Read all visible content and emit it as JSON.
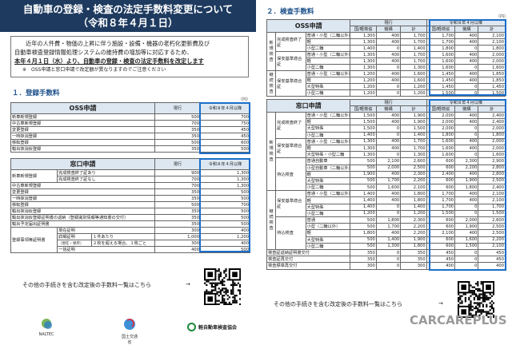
{
  "title": {
    "line1": "自動車の登録・検査の法定手数料変更について",
    "line2": "（令和８年４月１日）"
  },
  "intro": {
    "line1": "近年の人件費・物価の上昇に伴う施設・設備・機器の老朽化更新費及び",
    "line2": "自動車検査登録情報処理システムの維持費の増加等に対応するため、",
    "line3": "本年４月１日（水）より、自動車の登録・検査の法定手数料を改定します",
    "note": "※　OSS申請と窓口申請で改定額が異なりますのでご注意ください"
  },
  "registration": {
    "heading": "１．登録手数料",
    "unit": "（円）",
    "oss": {
      "header": "OSS申請",
      "col_current": "現行",
      "col_new": "令和８年４月以降",
      "rows": [
        [
          "新車新規登録",
          "500",
          "700"
        ],
        [
          "中古車新規登録",
          "700",
          "750"
        ],
        [
          "変更登録",
          "350",
          "450"
        ],
        [
          "一時抹消登録",
          "350",
          "450"
        ],
        [
          "移転登録",
          "500",
          "600"
        ],
        [
          "輸出抹消仮登録",
          "350",
          "500"
        ]
      ]
    },
    "window": {
      "header": "窓口申請",
      "col_current": "現行",
      "col_new": "令和８年４月以降",
      "new_car": {
        "label": "新車新規登録",
        "rows": [
          [
            "完成検査終了証あり",
            "900",
            "1,300"
          ],
          [
            "完成検査終了証なし",
            "700",
            "1,300"
          ]
        ]
      },
      "rows": [
        [
          "中古車新規登録",
          "700",
          "1,300"
        ],
        [
          "変更登録",
          "350",
          "500"
        ],
        [
          "一時抹消登録",
          "350",
          "500"
        ],
        [
          "移転登録",
          "500",
          "700"
        ],
        [
          "輸出抹消仮登録",
          "350",
          "500"
        ],
        [
          "輸出抹消仮登録証明書の返納（登録識別情報等通知書の交付）",
          "350",
          "500"
        ],
        [
          "輸出予定届出証明書",
          "350",
          "500"
        ]
      ],
      "cert": {
        "label": "登録事項等証明書",
        "current": [
          "現在証明",
          "300",
          "400"
        ],
        "detail_label": "詳細証明",
        "detail_sub": "（現在・保存）",
        "detail": [
          [
            "１件あたり",
            "1,000",
            "1,200"
          ],
          [
            "２枚を超える場合、１枚ごと",
            "300",
            "400"
          ]
        ],
        "bulk": [
          "一括証明",
          "400",
          "500"
        ]
      }
    }
  },
  "inspection": {
    "heading": "２．検査手数料",
    "unit": "（円）",
    "cols": {
      "current": "現行",
      "new": "令和８年４月以降",
      "sub": [
        "国/軽検協",
        "機構",
        "計",
        "国/軽検協",
        "機構",
        "計"
      ]
    },
    "oss": {
      "header": "OSS申請",
      "sections": [
        {
          "label": "新規検査",
          "groups": [
            {
              "label": "完成検査終了証",
              "rows": [
                [
                  "普通・小型（二輪以外）",
                  "1,300",
                  "400",
                  "1,700",
                  "1,700",
                  "400",
                  "2,100"
                ],
                [
                  "軽",
                  "1,300",
                  "400",
                  "1,700",
                  "1,700",
                  "400",
                  "2,100"
                ],
                [
                  "小型二輪",
                  "1,400",
                  "0",
                  "1,400",
                  "1,800",
                  "0",
                  "1,800"
                ]
              ]
            },
            {
              "label": "保安基準適合証",
              "rows": [
                [
                  "普通・小型（二輪以外）",
                  "1,300",
                  "400",
                  "1,700",
                  "1,600",
                  "400",
                  "2,000"
                ],
                [
                  "軽",
                  "1,300",
                  "400",
                  "1,700",
                  "1,600",
                  "400",
                  "2,000"
                ],
                [
                  "小型二輪",
                  "1,300",
                  "0",
                  "1,300",
                  "1,600",
                  "0",
                  "1,600"
                ]
              ]
            }
          ]
        },
        {
          "label": "継続検査",
          "groups": [
            {
              "label": "保安基準適合証",
              "rows": [
                [
                  "普通・小型（二輪以外）",
                  "1,200",
                  "400",
                  "1,600",
                  "1,450",
                  "400",
                  "1,850"
                ],
                [
                  "軽",
                  "1,200",
                  "400",
                  "1,600",
                  "1,450",
                  "400",
                  "1,850"
                ],
                [
                  "大型特殊",
                  "1,200",
                  "0",
                  "1,200",
                  "1,450",
                  "0",
                  "1,450"
                ],
                [
                  "小型二輪",
                  "1,200",
                  "0",
                  "1,200",
                  "1,500",
                  "0",
                  "1,500"
                ]
              ]
            }
          ]
        }
      ]
    },
    "window": {
      "header": "窓口申請",
      "sections": [
        {
          "label": "新規検査",
          "groups": [
            {
              "label": "完成検査終了証",
              "rows": [
                [
                  "普通・小型（二輪以外）",
                  "1,500",
                  "400",
                  "1,900",
                  "2,000",
                  "400",
                  "2,400"
                ],
                [
                  "軽",
                  "1,500",
                  "400",
                  "1,900",
                  "2,000",
                  "400",
                  "2,400"
                ],
                [
                  "大型特殊",
                  "1,500",
                  "0",
                  "1,500",
                  "2,000",
                  "0",
                  "2,000"
                ],
                [
                  "小型二輪",
                  "1,400",
                  "0",
                  "1,400",
                  "1,800",
                  "0",
                  "1,800"
                ]
              ]
            },
            {
              "label": "保安基準適合証",
              "rows": [
                [
                  "普通・小型（二輪以外）",
                  "1,300",
                  "400",
                  "1,700",
                  "1,600",
                  "400",
                  "2,000"
                ],
                [
                  "軽",
                  "1,300",
                  "400",
                  "1,700",
                  "1,600",
                  "400",
                  "2,000"
                ],
                [
                  "大型特殊・小型二輪",
                  "1,300",
                  "0",
                  "1,300",
                  "1,600",
                  "0",
                  "1,600"
                ]
              ]
            },
            {
              "label": "持込検査",
              "rows": [
                [
                  "普通自動車",
                  "500",
                  "2,100",
                  "2,600",
                  "600",
                  "2,300",
                  "2,900"
                ],
                [
                  "小型自動車（二輪以外）",
                  "500",
                  "2,000",
                  "2,500",
                  "600",
                  "2,200",
                  "2,800"
                ],
                [
                  "軽",
                  "1,900",
                  "400",
                  "2,300",
                  "2,400",
                  "400",
                  "2,800"
                ],
                [
                  "大型特殊",
                  "500",
                  "1,700",
                  "2,200",
                  "600",
                  "1,900",
                  "2,500"
                ],
                [
                  "小型二輪",
                  "500",
                  "1,600",
                  "2,100",
                  "600",
                  "1,800",
                  "2,400"
                ]
              ]
            }
          ]
        },
        {
          "label": "継続検査",
          "groups": [
            {
              "label": "保安基準適合証",
              "rows": [
                [
                  "普通・小型（二輪以外）",
                  "1,400",
                  "400",
                  "1,800",
                  "1,700",
                  "400",
                  "2,100"
                ],
                [
                  "軽",
                  "1,400",
                  "400",
                  "1,800",
                  "1,700",
                  "400",
                  "2,100"
                ],
                [
                  "大型特殊",
                  "1,400",
                  "0",
                  "1,400",
                  "1,700",
                  "0",
                  "1,700"
                ],
                [
                  "小型二輪",
                  "1,200",
                  "0",
                  "1,200",
                  "1,500",
                  "0",
                  "1,500"
                ]
              ]
            },
            {
              "label": "持込検査",
              "rows": [
                [
                  "普通",
                  "500",
                  "1,800",
                  "2,300",
                  "600",
                  "2,000",
                  "2,600"
                ],
                [
                  "小型（二輪以外）",
                  "500",
                  "1,700",
                  "2,200",
                  "600",
                  "1,900",
                  "2,500"
                ],
                [
                  "軽",
                  "1,800",
                  "400",
                  "2,200",
                  "2,100",
                  "400",
                  "2,500"
                ],
                [
                  "大型特殊",
                  "500",
                  "1,400",
                  "1,900",
                  "600",
                  "1,600",
                  "2,200"
                ],
                [
                  "小型二輪",
                  "500",
                  "1,300",
                  "1,800",
                  "600",
                  "1,500",
                  "2,100"
                ]
              ]
            }
          ]
        }
      ],
      "extra": [
        [
          "検査証返納証明書交付",
          "350",
          "0",
          "350",
          "450",
          "0",
          "450"
        ],
        [
          "検査証再交付",
          "350",
          "0",
          "350",
          "450",
          "0",
          "450"
        ],
        [
          "検査標章再交付",
          "300",
          "0",
          "300",
          "400",
          "0",
          "400"
        ]
      ]
    }
  },
  "footer": {
    "link_text": "その他の手続きを含む改定後の手数料一覧はこちら",
    "arrow": "→",
    "logos": {
      "naltec": "NALTEC",
      "mlit": "国土交通省",
      "lmvia": "軽自動車検査協会"
    },
    "watermark": "CARCAREPLUS"
  },
  "colors": {
    "banner": "#1e3a5f",
    "accent": "#1a6fc9",
    "heading": "#1a4f8a",
    "header_bg": "#dde7f1"
  }
}
